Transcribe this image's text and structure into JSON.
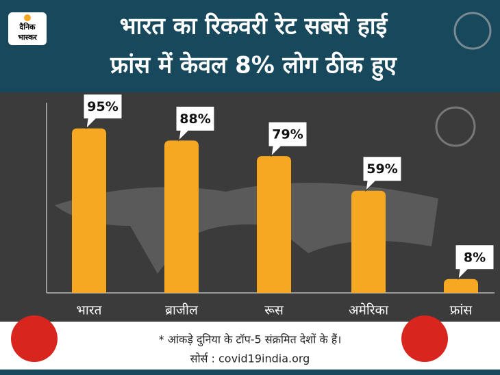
{
  "logo": {
    "line1": "दैनिक",
    "line2": "भास्कर"
  },
  "chart_data": {
    "type": "bar",
    "title": "भारत का रिकवरी रेट सबसे हाई",
    "subtitle": "फ्रांस में केवल 8% लोग ठीक हुए",
    "categories": [
      "भारत",
      "ब्राजील",
      "रूस",
      "अमेरिका",
      "फ्रांस"
    ],
    "values": [
      95,
      88,
      79,
      59,
      8
    ],
    "value_labels": [
      "95%",
      "88%",
      "79%",
      "59%",
      "8%"
    ],
    "color": "#f7a823",
    "footnote": "* आंकड़े दुनिया के टॉप-5 संक्रमित देशों के हैं।",
    "source": "सोर्स : covid19india.org"
  }
}
